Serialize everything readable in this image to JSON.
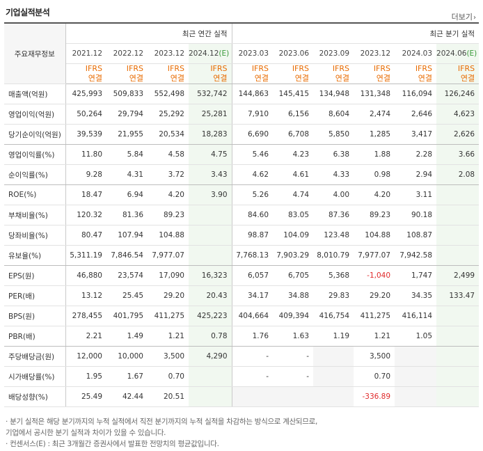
{
  "header": {
    "title": "기업실적분석",
    "more_label": "더보기",
    "more_icon": "chevron-right-icon"
  },
  "table": {
    "corner_label": "주요재무정보",
    "group_annual": "최근 연간 실적",
    "group_quarter": "최근 분기 실적",
    "periods": [
      "2021.12",
      "2022.12",
      "2023.12",
      "2024.12",
      "2023.03",
      "2023.06",
      "2023.09",
      "2023.12",
      "2024.03",
      "2024.06"
    ],
    "estimate_mark": "(E)",
    "standard": "IFRS",
    "basis": "연결",
    "rows": [
      {
        "label": "매출액(억원)",
        "values": [
          "425,993",
          "509,833",
          "552,498",
          "532,742",
          "144,863",
          "145,415",
          "134,948",
          "131,348",
          "116,094",
          "126,246"
        ]
      },
      {
        "label": "영업이익(억원)",
        "values": [
          "50,264",
          "29,794",
          "25,292",
          "25,281",
          "7,910",
          "6,156",
          "8,604",
          "2,474",
          "2,646",
          "4,623"
        ]
      },
      {
        "label": "당기순이익(억원)",
        "values": [
          "39,539",
          "21,955",
          "20,534",
          "18,283",
          "6,690",
          "6,708",
          "5,850",
          "1,285",
          "3,417",
          "2,626"
        ]
      },
      {
        "label": "영업이익률(%)",
        "values": [
          "11.80",
          "5.84",
          "4.58",
          "4.75",
          "5.46",
          "4.23",
          "6.38",
          "1.88",
          "2.28",
          "3.66"
        ]
      },
      {
        "label": "순이익률(%)",
        "values": [
          "9.28",
          "4.31",
          "3.72",
          "3.43",
          "4.62",
          "4.61",
          "4.33",
          "0.98",
          "2.94",
          "2.08"
        ]
      },
      {
        "label": "ROE(%)",
        "values": [
          "18.47",
          "6.94",
          "4.20",
          "3.90",
          "5.26",
          "4.74",
          "4.00",
          "4.20",
          "3.11",
          ""
        ]
      },
      {
        "label": "부채비율(%)",
        "values": [
          "120.32",
          "81.36",
          "89.23",
          "",
          "84.60",
          "83.05",
          "87.36",
          "89.23",
          "90.18",
          ""
        ]
      },
      {
        "label": "당좌비율(%)",
        "values": [
          "80.47",
          "107.94",
          "104.88",
          "",
          "98.87",
          "104.09",
          "123.48",
          "104.88",
          "108.87",
          ""
        ]
      },
      {
        "label": "유보율(%)",
        "values": [
          "5,311.19",
          "7,846.54",
          "7,977.07",
          "",
          "7,768.13",
          "7,903.29",
          "8,010.79",
          "7,977.07",
          "7,942.58",
          ""
        ]
      },
      {
        "label": "EPS(원)",
        "values": [
          "46,880",
          "23,574",
          "17,090",
          "16,323",
          "6,057",
          "6,705",
          "5,368",
          "-1,040",
          "1,747",
          "2,499"
        ]
      },
      {
        "label": "PER(배)",
        "values": [
          "13.12",
          "25.45",
          "29.20",
          "20.43",
          "34.17",
          "34.88",
          "29.83",
          "29.20",
          "34.35",
          "133.47"
        ]
      },
      {
        "label": "BPS(원)",
        "values": [
          "278,455",
          "401,795",
          "411,275",
          "425,223",
          "404,664",
          "409,394",
          "416,754",
          "411,275",
          "416,114",
          ""
        ]
      },
      {
        "label": "PBR(배)",
        "values": [
          "2.21",
          "1.49",
          "1.21",
          "0.78",
          "1.76",
          "1.63",
          "1.19",
          "1.21",
          "1.05",
          ""
        ]
      },
      {
        "label": "주당배당금(원)",
        "values": [
          "12,000",
          "10,000",
          "3,500",
          "4,290",
          "-",
          "-",
          "",
          "3,500",
          "",
          ""
        ]
      },
      {
        "label": "시가배당률(%)",
        "values": [
          "1.95",
          "1.67",
          "0.70",
          "",
          "-",
          "-",
          "",
          "0.70",
          "",
          ""
        ]
      },
      {
        "label": "배당성향(%)",
        "values": [
          "25.49",
          "42.44",
          "20.51",
          "",
          "",
          "",
          "",
          "-336.89",
          "",
          ""
        ]
      }
    ]
  },
  "notes": [
    "· 분기 실적은 해당 분기까지의 누적 실적에서 직전 분기까지의 누적 실적을 차감하는 방식으로 계산되므로,",
    "  기업에서 공시한 분기 실적과 차이가 있을 수 있습니다.",
    "· 컨센서스(E) : 최근 3개월간 증권사에서 발표한 전망치의 평균값입니다."
  ],
  "colors": {
    "ifrs": "#e86b00",
    "estimate_bg": "#f1f8f0",
    "negative": "#e0292a"
  }
}
